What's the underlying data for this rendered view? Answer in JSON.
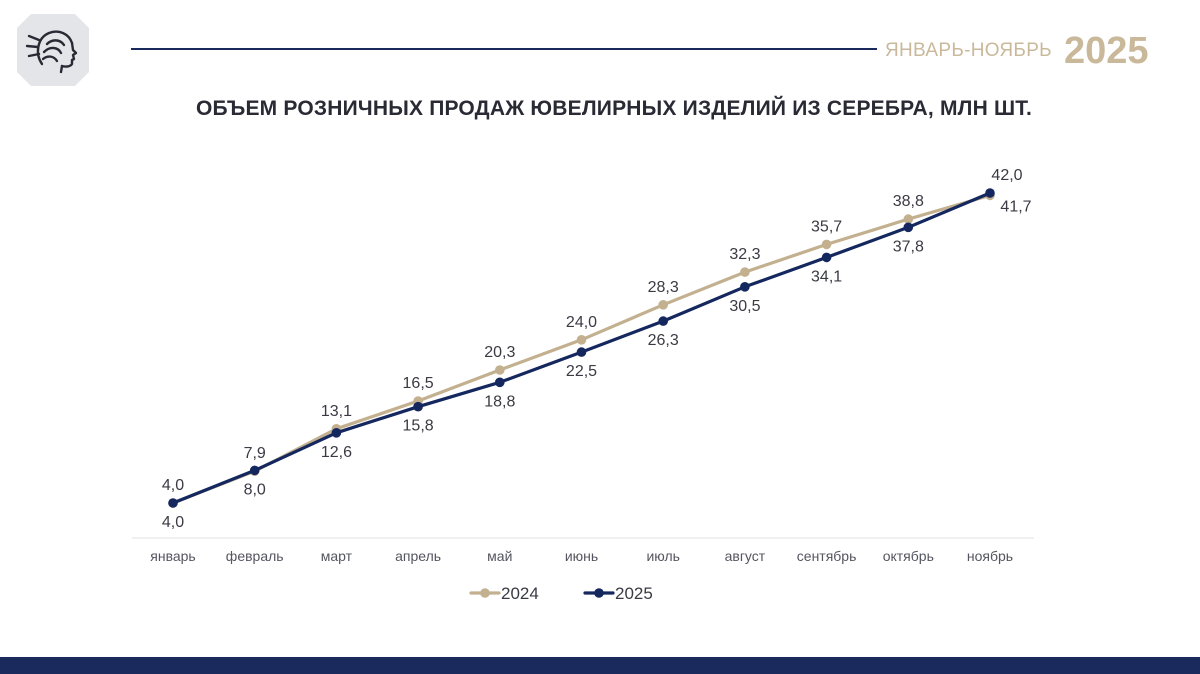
{
  "header": {
    "period": "ЯНВАРЬ-НОЯБРЬ",
    "year": "2025",
    "logo_icon": "goddess-profile-icon"
  },
  "colors": {
    "navy": "#1b2a5c",
    "gold": "#c9b99a",
    "series_2024": "#c2b08f",
    "series_2025": "#14285f"
  },
  "chart_data": {
    "type": "line",
    "title": "ОБЪЕМ РОЗНИЧНЫХ ПРОДАЖ ЮВЕЛИРНЫХ ИЗДЕЛИЙ ИЗ СЕРЕБРА, МЛН ШТ.",
    "categories": [
      "январь",
      "февраль",
      "март",
      "апрель",
      "май",
      "июнь",
      "июль",
      "август",
      "сентябрь",
      "октябрь",
      "ноябрь"
    ],
    "series": [
      {
        "name": "2024",
        "values": [
          4.0,
          7.9,
          13.1,
          16.5,
          20.3,
          24.0,
          28.3,
          32.3,
          35.7,
          38.8,
          41.7
        ],
        "labels": [
          "4,0",
          "7,9",
          "13,1",
          "16,5",
          "20,3",
          "24,0",
          "28,3",
          "32,3",
          "35,7",
          "38,8",
          "41,7"
        ]
      },
      {
        "name": "2025",
        "values": [
          4.0,
          8.0,
          12.6,
          15.8,
          18.8,
          22.5,
          26.3,
          30.5,
          34.1,
          37.8,
          42.0
        ],
        "labels": [
          "4,0",
          "8,0",
          "12,6",
          "15,8",
          "18,8",
          "22,5",
          "26,3",
          "30,5",
          "34,1",
          "37,8",
          "42,0"
        ]
      }
    ],
    "xlabel": "",
    "ylabel": "",
    "ylim": [
      0,
      45
    ],
    "grid": false,
    "legend": "bottom",
    "data_labels": true
  }
}
